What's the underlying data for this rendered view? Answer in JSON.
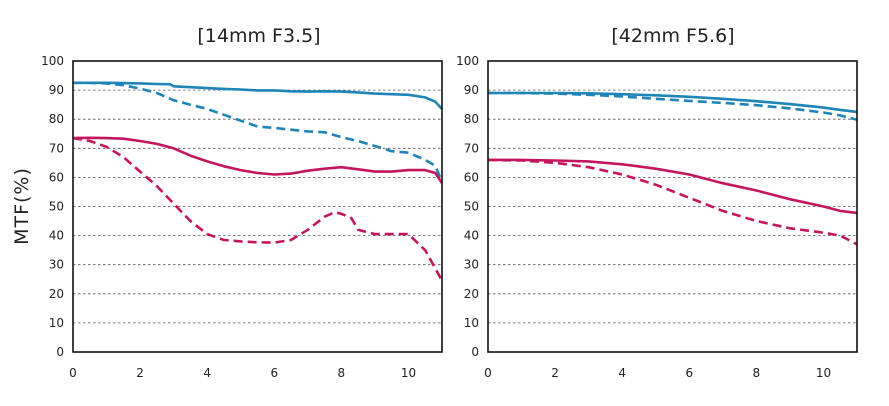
{
  "figure": {
    "ylabel": "MTF(%)"
  },
  "chart_data": [
    {
      "type": "line",
      "title": "[14mm F3.5]",
      "xlabel": "",
      "ylabel": "MTF(%)",
      "xlim": [
        0,
        11
      ],
      "ylim": [
        0,
        100
      ],
      "xticks": [
        0,
        2,
        4,
        6,
        8,
        10
      ],
      "yticks": [
        0,
        10,
        20,
        30,
        40,
        50,
        60,
        70,
        80,
        90,
        100
      ],
      "grid": "horizontal dashed",
      "colors": {
        "blue": "#1f84b8",
        "magenta": "#c4165f"
      },
      "series": [
        {
          "color": "#1f84b8",
          "style": "solid",
          "x": [
            0,
            0.5,
            1,
            1.5,
            2,
            2.5,
            2.9,
            3,
            3.5,
            4,
            4.5,
            5,
            5.5,
            6,
            6.5,
            7,
            7.5,
            8,
            8.5,
            9,
            9.5,
            10,
            10.5,
            10.8,
            11
          ],
          "y": [
            92.5,
            92.5,
            92.5,
            92.4,
            92.3,
            92.1,
            92,
            91.3,
            91,
            90.7,
            90.4,
            90.2,
            89.9,
            89.9,
            89.6,
            89.5,
            89.6,
            89.5,
            89.2,
            88.8,
            88.6,
            88.4,
            87.5,
            86,
            83.5
          ]
        },
        {
          "color": "#1f84b8",
          "style": "dashed",
          "x": [
            0,
            0.5,
            1,
            1.5,
            2,
            2.5,
            3,
            3.5,
            4,
            4.5,
            5,
            5.5,
            6,
            6.5,
            7,
            7.5,
            8,
            8.5,
            9,
            9.5,
            10,
            10.5,
            10.8,
            11
          ],
          "y": [
            92.5,
            92.5,
            92.3,
            91.7,
            90.5,
            89,
            86.5,
            85,
            83.5,
            81.5,
            79.5,
            77.5,
            77,
            76.4,
            75.8,
            75.5,
            73.8,
            72.5,
            70.8,
            69,
            68.5,
            66,
            64,
            58.5
          ]
        },
        {
          "color": "#c4165f",
          "style": "solid",
          "x": [
            0,
            0.5,
            1,
            1.5,
            2,
            2.5,
            3,
            3.5,
            4,
            4.5,
            5,
            5.5,
            6,
            6.5,
            7,
            7.5,
            8,
            8.5,
            9,
            9.5,
            10,
            10.5,
            10.8,
            11
          ],
          "y": [
            73.5,
            73.6,
            73.5,
            73.3,
            72.5,
            71.5,
            70,
            67.5,
            65.5,
            63.8,
            62.5,
            61.5,
            61,
            61.3,
            62.3,
            63,
            63.5,
            62.8,
            62,
            62,
            62.5,
            62.5,
            61.5,
            58
          ]
        },
        {
          "color": "#c4165f",
          "style": "dashed",
          "x": [
            0,
            0.5,
            1,
            1.5,
            2,
            2.5,
            3,
            3.5,
            4,
            4.5,
            5,
            5.5,
            6,
            6.5,
            7,
            7.5,
            7.8,
            8,
            8.3,
            8.5,
            9,
            9.5,
            10,
            10.5,
            11
          ],
          "y": [
            73.5,
            72.5,
            70.5,
            67,
            62,
            57,
            51,
            45,
            40.5,
            38.5,
            38,
            37.7,
            37.6,
            38.5,
            42,
            46.5,
            48,
            47.5,
            46,
            42,
            40.5,
            40.5,
            40.5,
            35,
            24.5
          ]
        }
      ]
    },
    {
      "type": "line",
      "title": "[42mm F5.6]",
      "xlabel": "",
      "ylabel": "",
      "xlim": [
        0,
        11
      ],
      "ylim": [
        0,
        100
      ],
      "xticks": [
        0,
        2,
        4,
        6,
        8,
        10
      ],
      "yticks": [
        0,
        10,
        20,
        30,
        40,
        50,
        60,
        70,
        80,
        90,
        100
      ],
      "grid": "horizontal dashed",
      "colors": {
        "blue": "#1f84b8",
        "magenta": "#c4165f"
      },
      "series": [
        {
          "color": "#1f84b8",
          "style": "solid",
          "x": [
            0,
            1,
            2,
            3,
            4,
            5,
            6,
            7,
            8,
            9,
            10,
            10.5,
            11
          ],
          "y": [
            89,
            89,
            89,
            88.9,
            88.6,
            88.2,
            87.7,
            87,
            86.2,
            85.2,
            84,
            83.2,
            82.5
          ]
        },
        {
          "color": "#1f84b8",
          "style": "dashed",
          "x": [
            0,
            1,
            2,
            3,
            4,
            5,
            6,
            7,
            8,
            9,
            10,
            10.5,
            11
          ],
          "y": [
            89,
            89,
            88.8,
            88.4,
            87.8,
            87,
            86.3,
            85.6,
            84.8,
            83.7,
            82.3,
            81.3,
            79.8
          ]
        },
        {
          "color": "#c4165f",
          "style": "solid",
          "x": [
            0,
            1,
            2,
            3,
            4,
            5,
            6,
            7,
            8,
            9,
            10,
            10.5,
            11
          ],
          "y": [
            66,
            66,
            65.8,
            65.5,
            64.5,
            63,
            61,
            58,
            55.5,
            52.5,
            50,
            48.5,
            47.8
          ]
        },
        {
          "color": "#c4165f",
          "style": "dashed",
          "x": [
            0,
            1,
            2,
            3,
            4,
            5,
            6,
            7,
            8,
            9,
            10,
            10.5,
            11
          ],
          "y": [
            66,
            65.8,
            65,
            63.5,
            61,
            57.5,
            53,
            48.5,
            45,
            42.5,
            41,
            40,
            37
          ]
        }
      ]
    }
  ]
}
